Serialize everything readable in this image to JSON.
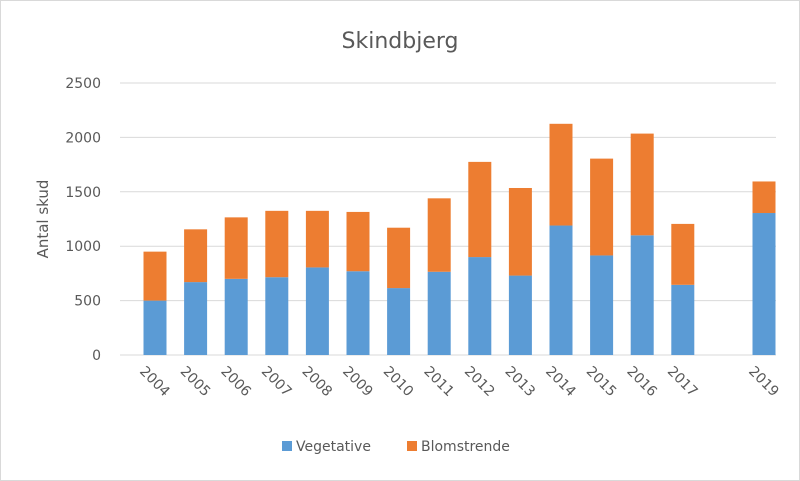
{
  "chart_data": {
    "type": "bar",
    "stacked": true,
    "title": "Skindbjerg",
    "xlabel": "",
    "ylabel": "Antal skud",
    "ylim": [
      0,
      2500
    ],
    "yticks": [
      0,
      500,
      1000,
      1500,
      2000,
      2500
    ],
    "grid": true,
    "legend_position": "bottom",
    "categories": [
      "2004",
      "2005",
      "2006",
      "2007",
      "2008",
      "2009",
      "2010",
      "2011",
      "2012",
      "2013",
      "2014",
      "2015",
      "2016",
      "2017",
      "",
      "2019"
    ],
    "series": [
      {
        "name": "Vegetative",
        "color": "#5b9bd5",
        "values": [
          500,
          670,
          700,
          715,
          805,
          770,
          615,
          765,
          900,
          730,
          1190,
          915,
          1100,
          645,
          null,
          1305
        ]
      },
      {
        "name": "Blomstrende",
        "color": "#ed7d31",
        "values": [
          450,
          485,
          565,
          610,
          520,
          545,
          555,
          675,
          875,
          805,
          935,
          890,
          935,
          560,
          null,
          290
        ]
      }
    ]
  }
}
